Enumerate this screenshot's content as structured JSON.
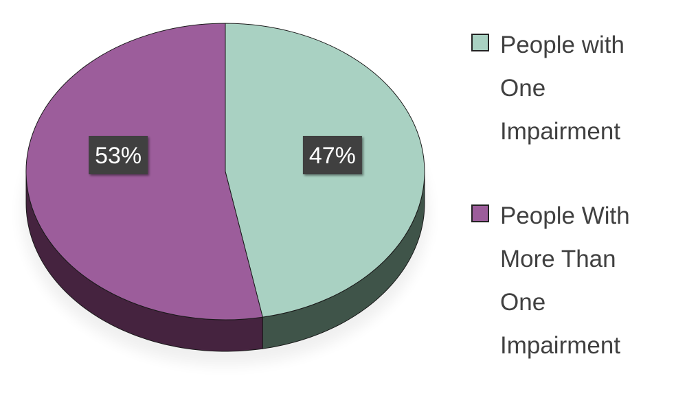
{
  "chart_data": {
    "type": "pie",
    "style": "3d",
    "slices": [
      {
        "label": "People with One Impairment",
        "value": 47,
        "data_label": "47%",
        "color": "#a9d1c2",
        "side_color": "#3f5449"
      },
      {
        "label": "People With More Than One Impairment",
        "value": 53,
        "data_label": "53%",
        "color": "#9c5d9b",
        "side_color": "#45233f"
      }
    ],
    "legend_position": "right"
  },
  "legend": {
    "items": [
      {
        "lines": [
          "People with",
          "One",
          "Impairment"
        ],
        "color": "#a9d1c2"
      },
      {
        "lines": [
          "People With",
          "More Than",
          "One",
          "Impairment"
        ],
        "color": "#9c5d9b"
      }
    ]
  }
}
